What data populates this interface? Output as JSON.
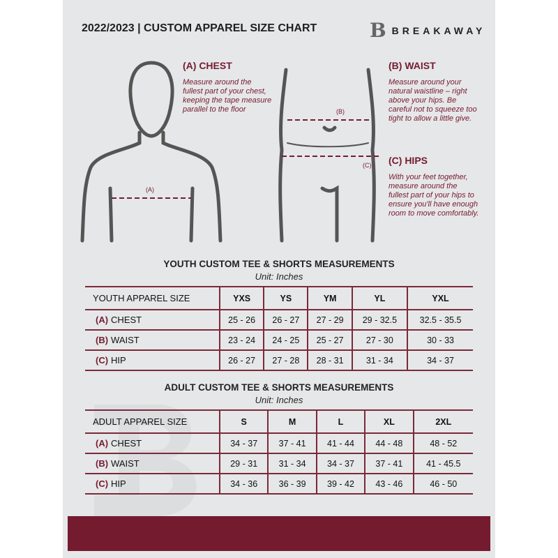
{
  "header": {
    "title": "2022/2023  |  CUSTOM APPAREL SIZE CHART",
    "brand": "BREAKAWAY",
    "logo_letter": "B"
  },
  "colors": {
    "accent": "#751b30",
    "background": "#e6e7e8"
  },
  "chest": {
    "title": "(A) CHEST",
    "text": "Measure around the fullest part of your chest, keeping the tape measure parallel to the floor",
    "marker": "(A)"
  },
  "waist": {
    "title": "(B) WAIST",
    "text": "Measure around your natural waistline – right above your hips. Be careful not to squeeze too tight to allow a little give.",
    "marker": "(B)"
  },
  "hips": {
    "title": "(C) HIPS",
    "text": "With your feet together, measure around the fullest part of your hips to ensure you'll have enough room to move comfortably.",
    "marker": "(C)"
  },
  "youth": {
    "title": "YOUTH CUSTOM TEE & SHORTS MEASUREMENTS",
    "unit": "Unit: Inches",
    "size_label": "YOUTH APPAREL SIZE",
    "sizes": [
      "YXS",
      "YS",
      "YM",
      "YL",
      "YXL"
    ],
    "rows": [
      {
        "key": "(A)",
        "name": "CHEST",
        "values": [
          "25 - 26",
          "26 - 27",
          "27 - 29",
          "29 - 32.5",
          "32.5 - 35.5"
        ]
      },
      {
        "key": "(B)",
        "name": "WAIST",
        "values": [
          "23 - 24",
          "24 - 25",
          "25 - 27",
          "27 - 30",
          "30 - 33"
        ]
      },
      {
        "key": "(C)",
        "name": "HIP",
        "values": [
          "26 - 27",
          "27 - 28",
          "28 - 31",
          "31 - 34",
          "34 - 37"
        ]
      }
    ]
  },
  "adult": {
    "title": "ADULT CUSTOM TEE & SHORTS MEASUREMENTS",
    "unit": "Unit: Inches",
    "size_label": "ADULT APPAREL SIZE",
    "sizes": [
      "S",
      "M",
      "L",
      "XL",
      "2XL"
    ],
    "rows": [
      {
        "key": "(A)",
        "name": "CHEST",
        "values": [
          "34 - 37",
          "37 - 41",
          "41 - 44",
          "44 - 48",
          "48 - 52"
        ]
      },
      {
        "key": "(B)",
        "name": "WAIST",
        "values": [
          "29 - 31",
          "31 - 34",
          "34 - 37",
          "37 - 41",
          "41 - 45.5"
        ]
      },
      {
        "key": "(C)",
        "name": "HIP",
        "values": [
          "34 - 36",
          "36 - 39",
          "39 - 42",
          "43 - 46",
          "46 - 50"
        ]
      }
    ]
  }
}
